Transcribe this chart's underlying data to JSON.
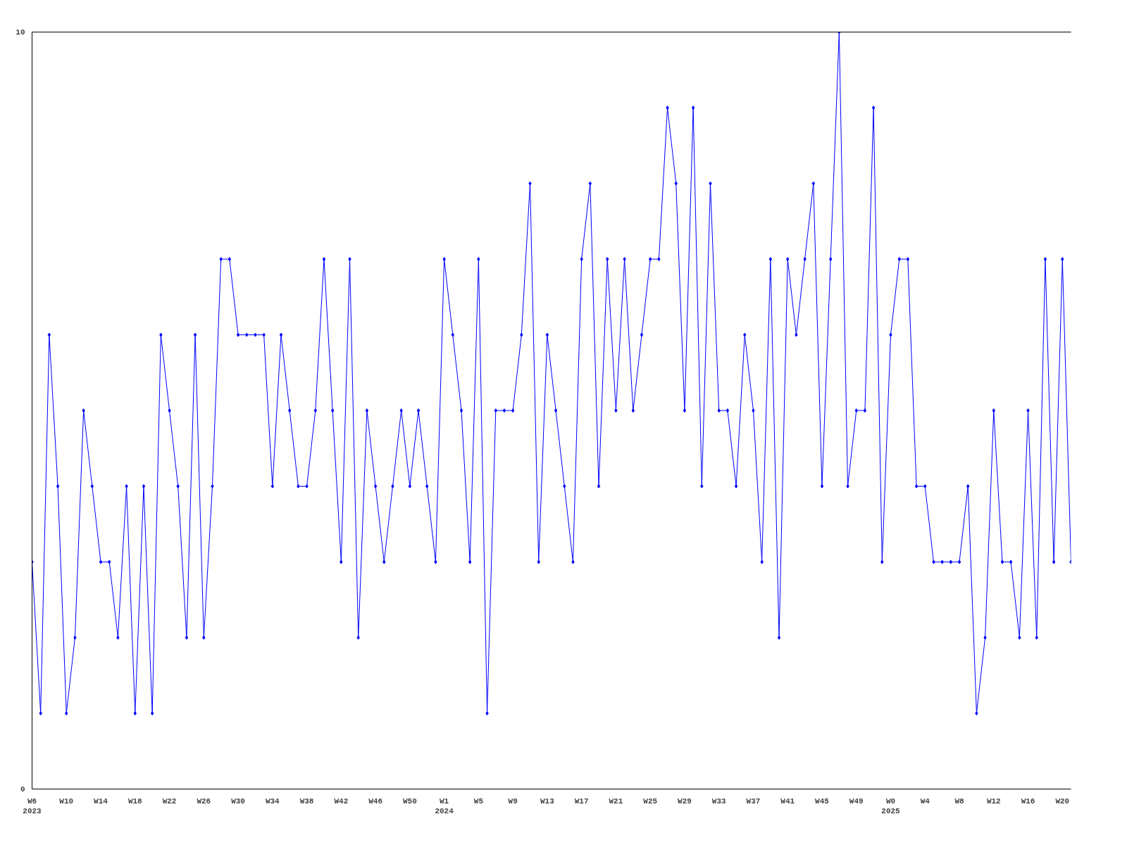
{
  "chart_data": {
    "type": "line",
    "color": "#0000ff",
    "marker": "diamond",
    "grid": false,
    "ylim": [
      0,
      10
    ],
    "yticks": [
      0,
      10
    ],
    "categories": [
      "W6\n2023",
      null,
      null,
      null,
      "W10",
      null,
      null,
      null,
      "W14",
      null,
      null,
      null,
      "W18",
      null,
      null,
      null,
      "W22",
      null,
      null,
      null,
      "W26",
      null,
      null,
      null,
      "W30",
      null,
      null,
      null,
      "W34",
      null,
      null,
      null,
      "W38",
      null,
      null,
      null,
      "W42",
      null,
      null,
      null,
      "W46",
      null,
      null,
      null,
      "W50",
      null,
      null,
      null,
      "W1\n2024",
      null,
      null,
      null,
      "W5",
      null,
      null,
      null,
      "W9",
      null,
      null,
      null,
      "W13",
      null,
      null,
      null,
      "W17",
      null,
      null,
      null,
      "W21",
      null,
      null,
      null,
      "W25",
      null,
      null,
      null,
      "W29",
      null,
      null,
      null,
      "W33",
      null,
      null,
      null,
      "W37",
      null,
      null,
      null,
      "W41",
      null,
      null,
      null,
      "W45",
      null,
      null,
      null,
      "W49",
      null,
      null,
      null,
      "W0\n2025",
      null,
      null,
      null,
      "W4",
      null,
      null,
      null,
      "W8",
      null,
      null,
      null,
      "W12",
      null,
      null,
      null,
      "W16",
      null,
      null,
      null,
      "W20",
      null
    ],
    "values": [
      3,
      1,
      6,
      4,
      1,
      2,
      5,
      4,
      3,
      3,
      2,
      4,
      1,
      4,
      1,
      6,
      5,
      4,
      2,
      6,
      2,
      4,
      7,
      7,
      6,
      6,
      6,
      6,
      4,
      6,
      5,
      4,
      4,
      5,
      7,
      5,
      3,
      7,
      2,
      5,
      4,
      3,
      4,
      5,
      4,
      5,
      4,
      3,
      7,
      6,
      5,
      3,
      7,
      1,
      5,
      5,
      5,
      6,
      8,
      3,
      6,
      5,
      4,
      3,
      7,
      8,
      4,
      7,
      5,
      7,
      5,
      6,
      7,
      7,
      9,
      8,
      5,
      9,
      4,
      8,
      5,
      5,
      4,
      6,
      5,
      3,
      7,
      2,
      7,
      6,
      7,
      8,
      4,
      7,
      10,
      4,
      5,
      5,
      9,
      3,
      6,
      7,
      7,
      4,
      4,
      3,
      3,
      3,
      3,
      4,
      1,
      2,
      5,
      3,
      3,
      2,
      5,
      2,
      7,
      3,
      7,
      3
    ]
  }
}
